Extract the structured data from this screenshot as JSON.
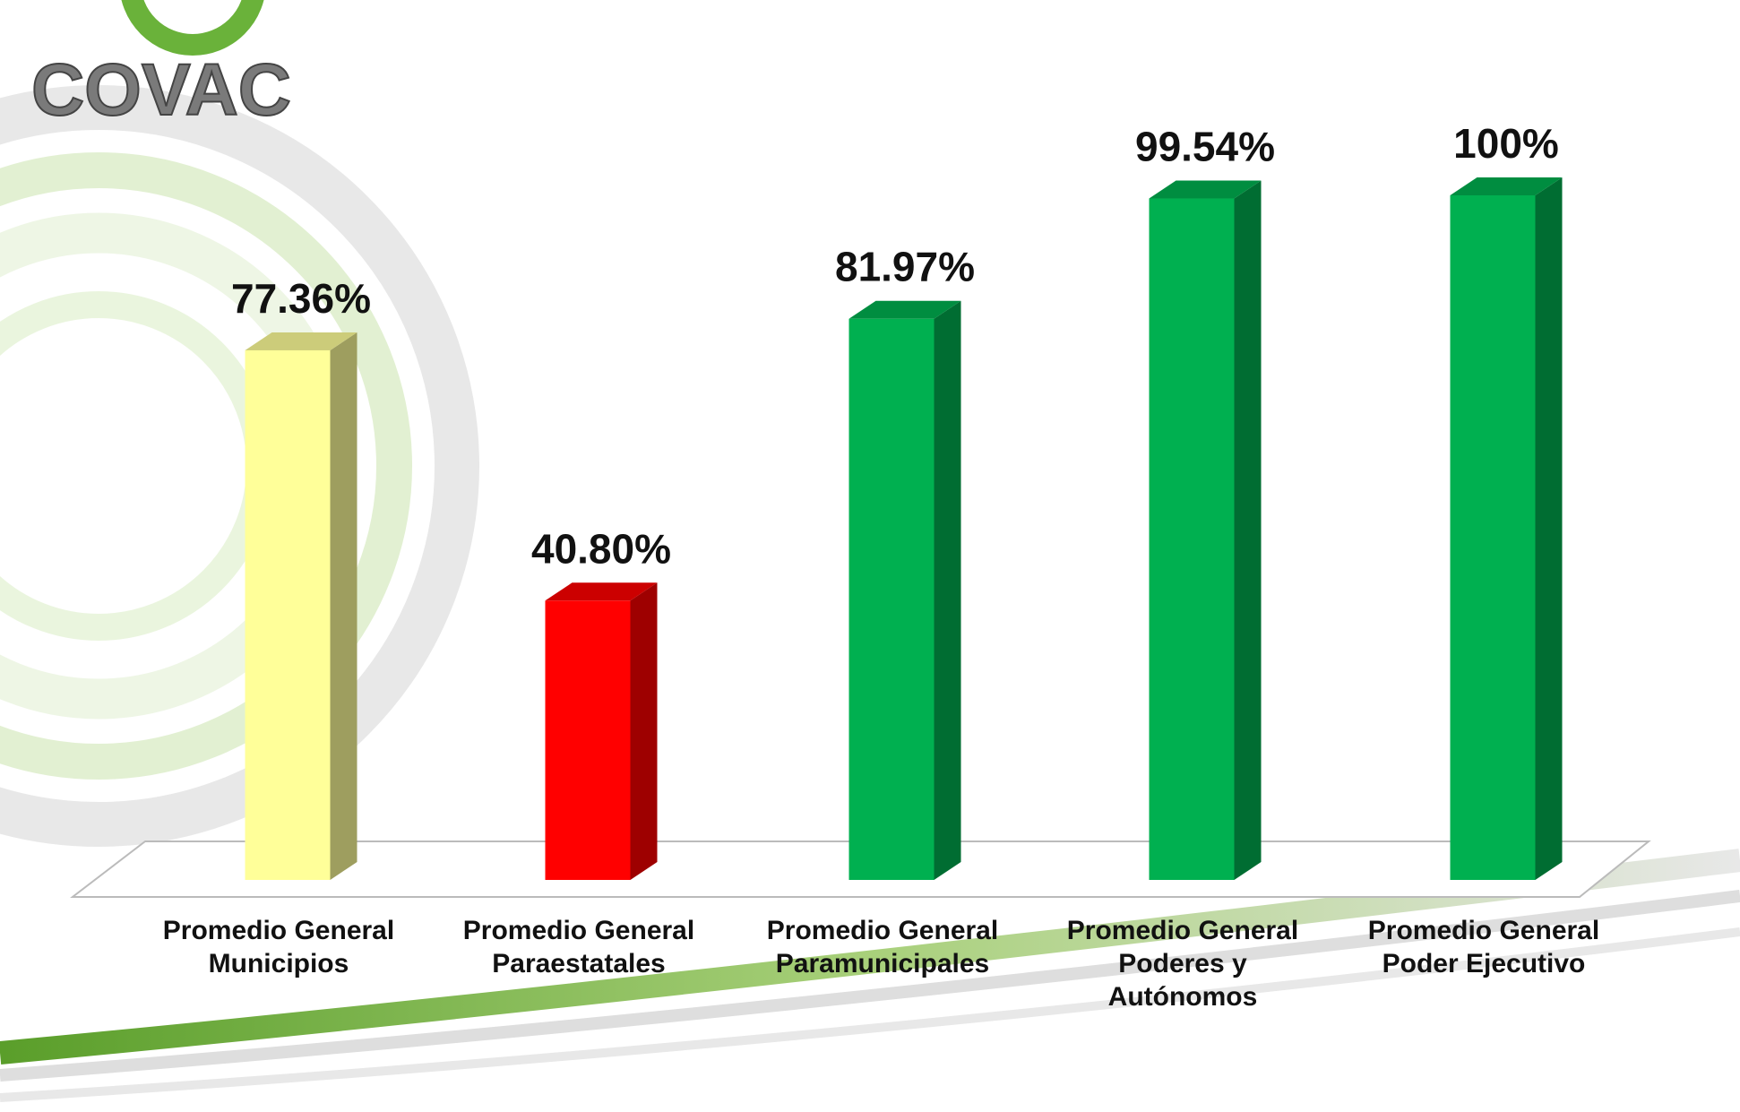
{
  "logo": "COVAC",
  "chart_data": {
    "type": "bar3d",
    "categories": [
      "Promedio General Municipios",
      "Promedio General Paraestatales",
      "Promedio General Paramunicipales",
      "Promedio General Poderes y Autónomos",
      "Promedio General Poder Ejecutivo"
    ],
    "values": [
      77.36,
      40.8,
      81.97,
      99.54,
      100
    ],
    "value_labels": [
      "77.36%",
      "40.80%",
      "81.97%",
      "99.54%",
      "100%"
    ],
    "colors": [
      "#ffff99",
      "#ff0000",
      "#00b050",
      "#00b050",
      "#00b050"
    ],
    "ylim": [
      0,
      100
    ]
  }
}
